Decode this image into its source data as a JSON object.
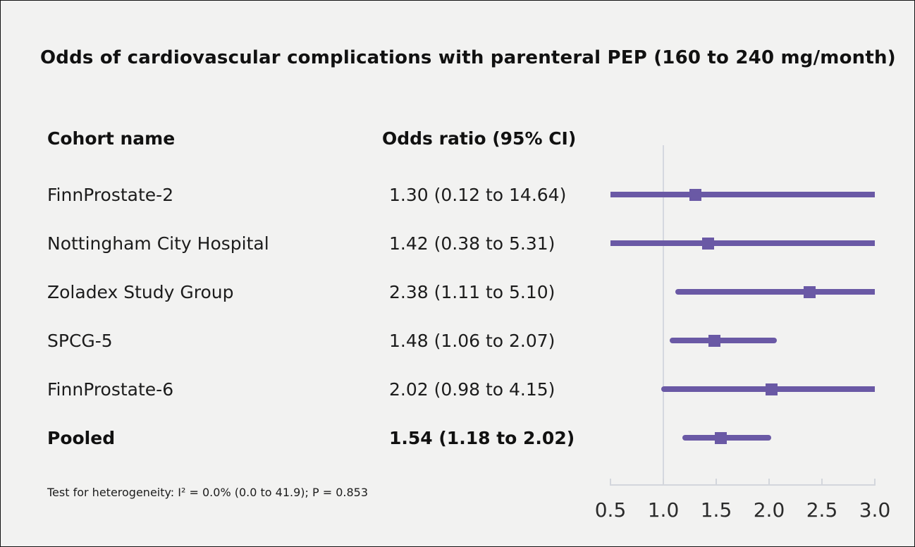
{
  "title": "Odds of cardiovascular complications with parenteral PEP (160 to 240 mg/month)",
  "columns": {
    "cohort": "Cohort name",
    "odds_ratio": "Odds ratio (95% CI)"
  },
  "footnote": "Test for heterogeneity: I² = 0.0% (0.0 to 41.9); P = 0.853",
  "chart_data": {
    "type": "forest",
    "title": "Odds of cardiovascular complications with parenteral PEP (160 to 240 mg/month)",
    "xlabel": "",
    "ylabel": "",
    "x_ticks": [
      "0.5",
      "1.0",
      "1.5",
      "2.0",
      "2.5",
      "3.0"
    ],
    "x_tick_values": [
      0.5,
      1.0,
      1.5,
      2.0,
      2.5,
      3.0
    ],
    "x_range": [
      0.5,
      3.0
    ],
    "reference_line": 1.0,
    "grid": false,
    "legend": false,
    "studies": [
      {
        "name": "FinnProstate-2",
        "label": "1.30 (0.12 to 14.64)",
        "or": 1.3,
        "ci_low": 0.12,
        "ci_high": 14.64,
        "pooled": false
      },
      {
        "name": "Nottingham City Hospital",
        "label": "1.42 (0.38 to 5.31)",
        "or": 1.42,
        "ci_low": 0.38,
        "ci_high": 5.31,
        "pooled": false
      },
      {
        "name": "Zoladex Study Group",
        "label": "2.38 (1.11 to 5.10)",
        "or": 2.38,
        "ci_low": 1.11,
        "ci_high": 5.1,
        "pooled": false
      },
      {
        "name": "SPCG-5",
        "label": "1.48 (1.06 to 2.07)",
        "or": 1.48,
        "ci_low": 1.06,
        "ci_high": 2.07,
        "pooled": false
      },
      {
        "name": "FinnProstate-6",
        "label": "2.02 (0.98 to 4.15)",
        "or": 2.02,
        "ci_low": 0.98,
        "ci_high": 4.15,
        "pooled": false
      },
      {
        "name": "Pooled",
        "label": "1.54 (1.18 to 2.02)",
        "or": 1.54,
        "ci_low": 1.18,
        "ci_high": 2.02,
        "pooled": true
      }
    ],
    "colors": {
      "marker": "#6a59a5",
      "reference_line": "#d5d8e0",
      "axis": "#d3d6dc",
      "background": "#f2f2f1",
      "text": "#111111"
    }
  }
}
